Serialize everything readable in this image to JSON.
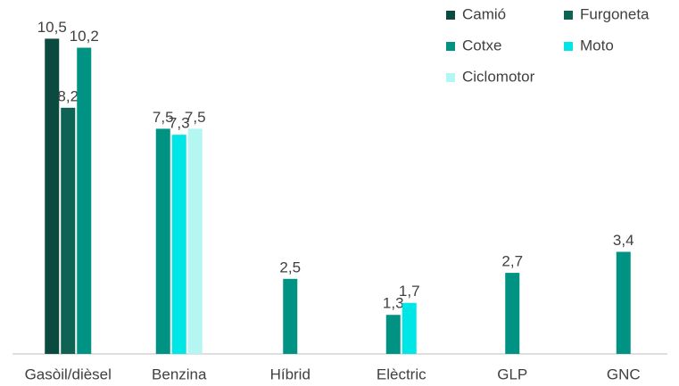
{
  "chart_data": {
    "type": "bar",
    "categories": [
      "Gasòil/dièsel",
      "Benzina",
      "Híbrid",
      "Elèctric",
      "GLP",
      "GNC"
    ],
    "series": [
      {
        "name": "Camió",
        "color": "#0a4a3f",
        "values": [
          10.5,
          null,
          null,
          null,
          null,
          null
        ],
        "value_labels": [
          "10,5",
          null,
          null,
          null,
          null,
          null
        ]
      },
      {
        "name": "Furgoneta",
        "color": "#0f6354",
        "values": [
          8.2,
          null,
          null,
          null,
          null,
          null
        ],
        "value_labels": [
          "8,2",
          null,
          null,
          null,
          null,
          null
        ]
      },
      {
        "name": "Cotxe",
        "color": "#009282",
        "values": [
          10.2,
          7.5,
          2.5,
          1.3,
          2.7,
          3.4
        ],
        "value_labels": [
          "10,2",
          "7,5",
          "2,5",
          "1,3",
          "2,7",
          "3,4"
        ]
      },
      {
        "name": "Moto",
        "color": "#00e6e6",
        "values": [
          null,
          7.3,
          null,
          1.7,
          null,
          null
        ],
        "value_labels": [
          null,
          "7,3",
          null,
          "1,7",
          null,
          null
        ]
      },
      {
        "name": "Ciclomotor",
        "color": "#b4f6f1",
        "values": [
          null,
          7.5,
          null,
          null,
          null,
          null
        ],
        "value_labels": [
          null,
          "7,5",
          null,
          null,
          null,
          null
        ]
      }
    ],
    "ylim": [
      0,
      11.7
    ]
  }
}
